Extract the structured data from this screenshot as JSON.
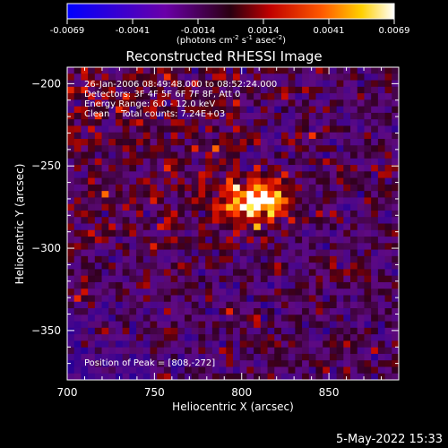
{
  "chart_data": {
    "type": "heatmap",
    "title": "Reconstructed RHESSI Image",
    "xlabel": "Heliocentric X (arcsec)",
    "ylabel": "Heliocentric Y (arcsec)",
    "xlim": [
      700,
      890
    ],
    "ylim": [
      -380,
      -190
    ],
    "x_ticks": [
      700,
      750,
      800,
      850
    ],
    "y_ticks": [
      -200,
      -250,
      -300,
      -350
    ],
    "colorbar": {
      "min": -0.0069,
      "max": 0.0069,
      "tick_labels": [
        "-0.0069",
        "-0.0041",
        "-0.0014",
        "0.0014",
        "0.0041",
        "0.0069"
      ],
      "unit_label": "(photons cm^-2 s^-1 asec^-2)"
    },
    "annotations": [
      "26-Jan-2006 08:49:48.000 to 08:52:24.000",
      "Detectors: 3F 4F 5F 6F 7F 8F, Att 0",
      "Energy Range: 6.0 - 12.0 keV",
      "Clean    Total counts: 7.24E+03"
    ],
    "peak": {
      "x": 808,
      "y": -272,
      "label": "Position of Peak = [808,-272]"
    },
    "grid": false
  },
  "footer": {
    "timestamp": "5-May-2022 15:33"
  }
}
